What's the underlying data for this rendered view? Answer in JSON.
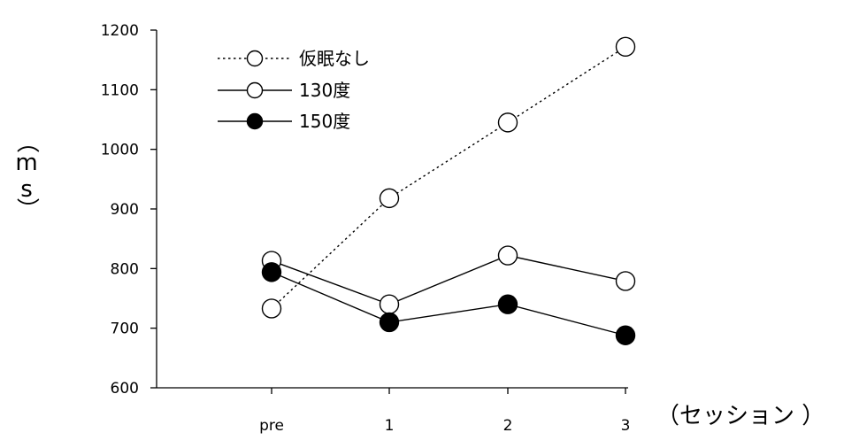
{
  "chart_data": {
    "type": "line",
    "categories": [
      "pre",
      "1",
      "2",
      "3"
    ],
    "series": [
      {
        "name": "仮眠なし",
        "values": [
          733,
          918,
          1045,
          1172
        ],
        "line_style": "dotted",
        "marker": "open-circle"
      },
      {
        "name": "130度",
        "values": [
          813,
          740,
          822,
          779
        ],
        "line_style": "solid",
        "marker": "open-circle"
      },
      {
        "name": "150度",
        "values": [
          794,
          710,
          740,
          688
        ],
        "line_style": "solid",
        "marker": "filled-circle"
      }
    ],
    "ylim": [
      600,
      1200
    ],
    "yticks": [
      600,
      700,
      800,
      900,
      1000,
      1100,
      1200
    ],
    "xlabel": "（セッション ）",
    "ylabel_chars": [
      "（",
      "m",
      "s",
      "）"
    ],
    "grid": false,
    "legend_position": "top-left",
    "colors": {
      "line": "#000000",
      "marker_fill_filled": "#000000",
      "marker_fill_open": "#ffffff"
    }
  }
}
